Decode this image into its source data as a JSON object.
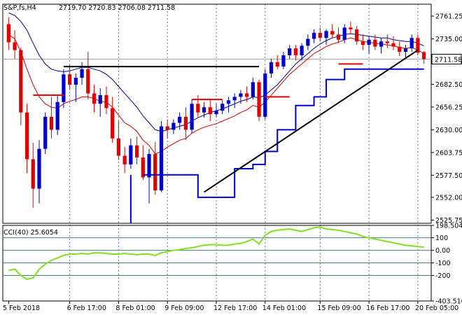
{
  "header": {
    "symbol": "S&P,fs,H4",
    "ohlc": "2719.70 2720.83 2706.08 2711.58"
  },
  "indicator": {
    "label": "CCI(40) 25.6054"
  },
  "colors": {
    "bull": "#0000cc",
    "bear": "#e00000",
    "ma_fast": "#cc0000",
    "ma_slow": "#000080",
    "support": "#0000cc",
    "trendline": "#000000",
    "cci": "#80e020",
    "grid": "#4a7a8a"
  },
  "chart_data": {
    "type": "candlestick",
    "price_axis": {
      "ticks": [
        "2761.25",
        "2735.00",
        "2708.75",
        "2682.50",
        "2656.25",
        "2630.00",
        "2603.75",
        "2577.50",
        "2552.00",
        "2525.75"
      ],
      "tick_values": [
        2761.25,
        2735.0,
        2708.75,
        2682.5,
        2656.25,
        2630.0,
        2603.75,
        2577.5,
        2552.0,
        2525.75
      ],
      "range": [
        2522,
        2775
      ],
      "current_price": "2711.58",
      "current_value": 2711.58
    },
    "cci_axis": {
      "ticks": [
        "198.5044",
        "100",
        "0.00",
        "-100",
        "-200",
        "-403.5104"
      ],
      "tick_values": [
        198.5044,
        100,
        0,
        -100,
        -200,
        -403.5104
      ],
      "range": [
        -403.5104,
        198.5044
      ]
    },
    "time_axis": {
      "labels": [
        "5 Feb 2018",
        "6 Feb 17:00",
        "8 Feb 01:00",
        "9 Feb 09:00",
        "12 Feb 17:00",
        "14 Feb 01:00",
        "15 Feb 09:00",
        "16 Feb 17:00",
        "20 Feb 05:00"
      ],
      "label_bar_index": [
        0,
        10,
        18,
        26,
        34,
        42,
        51,
        59,
        67
      ]
    },
    "candles": [
      [
        2752,
        2760,
        2722,
        2731
      ],
      [
        2731,
        2745,
        2712,
        2722
      ],
      [
        2722,
        2725,
        2635,
        2650
      ],
      [
        2650,
        2660,
        2580,
        2596
      ],
      [
        2596,
        2615,
        2540,
        2562
      ],
      [
        2562,
        2618,
        2545,
        2608
      ],
      [
        2608,
        2650,
        2602,
        2645
      ],
      [
        2645,
        2668,
        2620,
        2630
      ],
      [
        2630,
        2670,
        2624,
        2662
      ],
      [
        2662,
        2700,
        2655,
        2694
      ],
      [
        2694,
        2705,
        2676,
        2682
      ],
      [
        2682,
        2695,
        2662,
        2690
      ],
      [
        2690,
        2708,
        2682,
        2700
      ],
      [
        2700,
        2720,
        2665,
        2672
      ],
      [
        2672,
        2682,
        2650,
        2660
      ],
      [
        2660,
        2678,
        2645,
        2670
      ],
      [
        2670,
        2680,
        2648,
        2655
      ],
      [
        2655,
        2668,
        2615,
        2620
      ],
      [
        2620,
        2640,
        2595,
        2600
      ],
      [
        2600,
        2610,
        2580,
        2590
      ],
      [
        2590,
        2620,
        2585,
        2612
      ],
      [
        2612,
        2622,
        2590,
        2598
      ],
      [
        2598,
        2612,
        2572,
        2575
      ],
      [
        2575,
        2608,
        2545,
        2602
      ],
      [
        2602,
        2616,
        2555,
        2560
      ],
      [
        2560,
        2640,
        2558,
        2634
      ],
      [
        2634,
        2642,
        2620,
        2630
      ],
      [
        2630,
        2642,
        2625,
        2638
      ],
      [
        2638,
        2650,
        2630,
        2645
      ],
      [
        2645,
        2656,
        2618,
        2630
      ],
      [
        2630,
        2665,
        2626,
        2660
      ],
      [
        2660,
        2670,
        2645,
        2650
      ],
      [
        2650,
        2662,
        2644,
        2656
      ],
      [
        2656,
        2666,
        2640,
        2648
      ],
      [
        2648,
        2660,
        2645,
        2652
      ],
      [
        2652,
        2664,
        2648,
        2660
      ],
      [
        2660,
        2668,
        2650,
        2664
      ],
      [
        2664,
        2672,
        2655,
        2668
      ],
      [
        2668,
        2676,
        2660,
        2672
      ],
      [
        2672,
        2680,
        2662,
        2668
      ],
      [
        2668,
        2690,
        2665,
        2685
      ],
      [
        2685,
        2688,
        2640,
        2645
      ],
      [
        2645,
        2700,
        2642,
        2695
      ],
      [
        2695,
        2712,
        2690,
        2708
      ],
      [
        2708,
        2716,
        2700,
        2703
      ],
      [
        2703,
        2720,
        2700,
        2716
      ],
      [
        2716,
        2728,
        2712,
        2724
      ],
      [
        2724,
        2728,
        2710,
        2716
      ],
      [
        2716,
        2730,
        2710,
        2727
      ],
      [
        2727,
        2740,
        2722,
        2735
      ],
      [
        2735,
        2746,
        2730,
        2742
      ],
      [
        2742,
        2748,
        2732,
        2736
      ],
      [
        2736,
        2746,
        2728,
        2744
      ],
      [
        2744,
        2752,
        2736,
        2740
      ],
      [
        2740,
        2748,
        2730,
        2734
      ],
      [
        2734,
        2752,
        2730,
        2748
      ],
      [
        2748,
        2755,
        2740,
        2746
      ],
      [
        2746,
        2750,
        2728,
        2732
      ],
      [
        2732,
        2740,
        2722,
        2728
      ],
      [
        2728,
        2738,
        2718,
        2734
      ],
      [
        2734,
        2740,
        2722,
        2726
      ],
      [
        2726,
        2736,
        2718,
        2732
      ],
      [
        2732,
        2740,
        2724,
        2730
      ],
      [
        2730,
        2738,
        2722,
        2726
      ],
      [
        2726,
        2732,
        2715,
        2720
      ],
      [
        2720,
        2728,
        2712,
        2724
      ],
      [
        2724,
        2740,
        2720,
        2736
      ],
      [
        2736,
        2740,
        2716,
        2719
      ],
      [
        2719.7,
        2720.83,
        2706.08,
        2711.58
      ]
    ],
    "series": [
      {
        "values": [
          2740,
          2735,
          2720,
          2700,
          2682,
          2668,
          2660,
          2656,
          2655,
          2660,
          2663,
          2665,
          2668,
          2668,
          2666,
          2663,
          2662,
          2656,
          2647,
          2638,
          2634,
          2628,
          2618,
          2612,
          2602,
          2605,
          2610,
          2614,
          2618,
          2620,
          2626,
          2630,
          2633,
          2635,
          2637,
          2640,
          2643,
          2646,
          2650,
          2653,
          2658,
          2656,
          2662,
          2670,
          2678,
          2686,
          2694,
          2700,
          2706,
          2712,
          2718,
          2722,
          2726,
          2729,
          2731,
          2734,
          2736,
          2734,
          2732,
          2731,
          2730,
          2729,
          2728,
          2727,
          2725,
          2724,
          2725,
          2722,
          2718
        ]
      },
      {
        "values": [
          2765,
          2762,
          2755,
          2745,
          2730,
          2716,
          2706,
          2700,
          2698,
          2697,
          2698,
          2700,
          2702,
          2702,
          2700,
          2698,
          2694,
          2688,
          2680,
          2672,
          2664,
          2656,
          2646,
          2638,
          2630,
          2628,
          2630,
          2632,
          2634,
          2636,
          2640,
          2644,
          2647,
          2650,
          2652,
          2654,
          2657,
          2660,
          2663,
          2665,
          2668,
          2667,
          2670,
          2676,
          2682,
          2690,
          2698,
          2706,
          2712,
          2718,
          2724,
          2729,
          2733,
          2736,
          2738,
          2740,
          2741,
          2740,
          2739,
          2738,
          2737,
          2736,
          2736,
          2734,
          2733,
          2732,
          2732,
          2730,
          2727
        ]
      },
      {
        "type": "step",
        "points": [
          [
            22,
            2578
          ],
          [
            27,
            2578
          ],
          [
            31,
            2552
          ],
          [
            35,
            2552
          ],
          [
            37,
            2585
          ],
          [
            40,
            2590
          ],
          [
            42,
            2605
          ],
          [
            44,
            2630
          ],
          [
            47,
            2658
          ],
          [
            50,
            2668
          ],
          [
            52,
            2688
          ],
          [
            55,
            2700
          ],
          [
            68,
            2700
          ]
        ]
      },
      {
        "type": "segments",
        "color": "red",
        "points": [
          [
            [
              4,
              2670
            ],
            [
              9,
              2670
            ]
          ],
          [
            [
              30,
              2665
            ],
            [
              35,
              2665
            ]
          ],
          [
            [
              42,
              2668
            ],
            [
              46,
              2668
            ]
          ],
          [
            [
              54,
              2706
            ],
            [
              58,
              2706
            ]
          ]
        ]
      }
    ],
    "trendlines": [
      {
        "from": [
          9,
          2703
        ],
        "to": [
          41,
          2703
        ]
      },
      {
        "from": [
          32,
          2558
        ],
        "to": [
          67,
          2722
        ]
      }
    ],
    "cci_values": [
      -160,
      -150,
      -200,
      -230,
      -220,
      -150,
      -110,
      -80,
      -60,
      -40,
      -30,
      -30,
      -25,
      -30,
      -20,
      -20,
      -25,
      -30,
      -30,
      -25,
      -30,
      -35,
      -30,
      -30,
      -40,
      -20,
      -10,
      0,
      5,
      15,
      20,
      30,
      40,
      45,
      45,
      40,
      40,
      50,
      55,
      70,
      90,
      50,
      120,
      150,
      160,
      165,
      170,
      160,
      150,
      165,
      180,
      185,
      170,
      165,
      160,
      150,
      140,
      130,
      110,
      100,
      90,
      80,
      70,
      60,
      50,
      40,
      35,
      30,
      25.6
    ]
  }
}
